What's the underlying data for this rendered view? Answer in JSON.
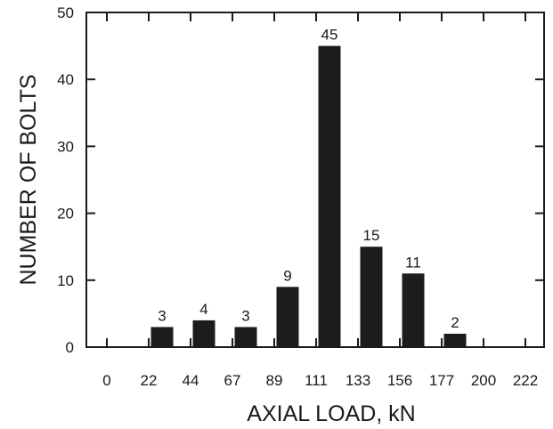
{
  "chart_data": {
    "type": "bar",
    "title": "",
    "xlabel": "AXIAL LOAD, kN",
    "ylabel": "NUMBER OF BOLTS",
    "categories": [
      "0",
      "22",
      "44",
      "67",
      "89",
      "111",
      "133",
      "156",
      "177",
      "200",
      "222"
    ],
    "values": [
      0,
      3,
      4,
      3,
      9,
      45,
      15,
      11,
      2,
      0,
      0
    ],
    "data_labels": [
      "",
      "3",
      "4",
      "3",
      "9",
      "45",
      "15",
      "11",
      "2",
      "",
      ""
    ],
    "ylim": [
      0,
      50
    ],
    "yticks": [
      "0",
      "10",
      "20",
      "30",
      "40",
      "50"
    ],
    "grid": false,
    "bar_color": "#1c1c1c",
    "axis_color": "#1a1a1a"
  }
}
